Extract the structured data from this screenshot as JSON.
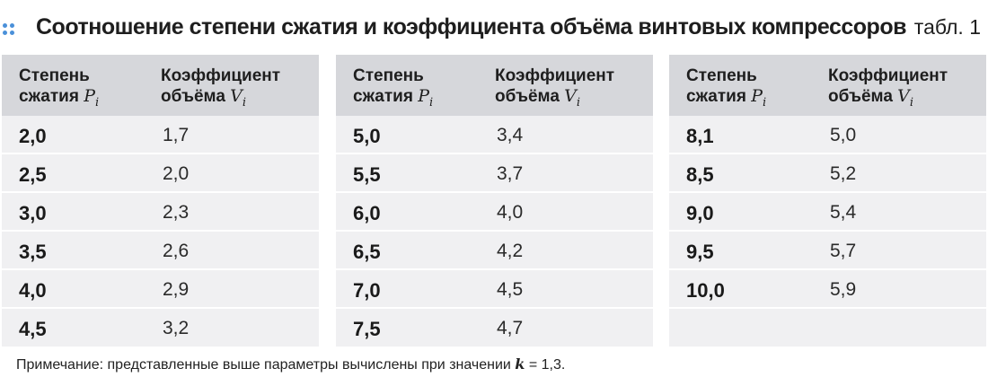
{
  "title": "Соотношение степени сжатия и коэффициента объёма винтовых компрессоров",
  "table_number": "табл. 1",
  "header": {
    "col1_line1": "Степень",
    "col1_line2": "сжатия",
    "col1_symbol": "P",
    "col1_sub": "i",
    "col2_line1": "Коэффициент",
    "col2_line2": "объёма",
    "col2_symbol": "V",
    "col2_sub": "i"
  },
  "panels": [
    {
      "rows": [
        [
          "2,0",
          "1,7"
        ],
        [
          "2,5",
          "2,0"
        ],
        [
          "3,0",
          "2,3"
        ],
        [
          "3,5",
          "2,6"
        ],
        [
          "4,0",
          "2,9"
        ],
        [
          "4,5",
          "3,2"
        ]
      ]
    },
    {
      "rows": [
        [
          "5,0",
          "3,4"
        ],
        [
          "5,5",
          "3,7"
        ],
        [
          "6,0",
          "4,0"
        ],
        [
          "6,5",
          "4,2"
        ],
        [
          "7,0",
          "4,5"
        ],
        [
          "7,5",
          "4,7"
        ]
      ]
    },
    {
      "rows": [
        [
          "8,1",
          "5,0"
        ],
        [
          "8,5",
          "5,2"
        ],
        [
          "9,0",
          "5,4"
        ],
        [
          "9,5",
          "5,7"
        ],
        [
          "10,0",
          "5,9"
        ]
      ]
    }
  ],
  "note": {
    "prefix": "Примечание: представленные выше параметры вычислены при значении ",
    "symbol": "k",
    "suffix": " = 1,3."
  },
  "colors": {
    "accent_dots": "#4a90d9",
    "header_bg": "#d6d7db",
    "body_bg": "#f0f0f2"
  }
}
